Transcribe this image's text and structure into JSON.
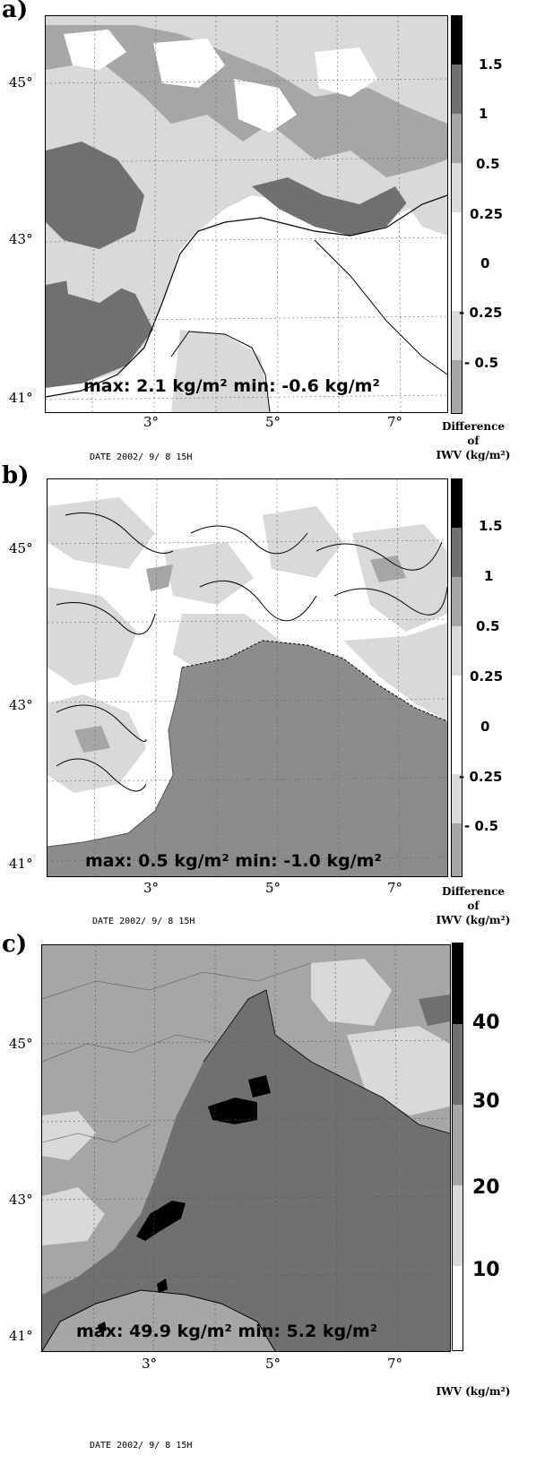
{
  "panels": [
    {
      "label": "a)",
      "lat_labels": [
        "45°",
        "43°",
        "41°"
      ],
      "lon_labels": [
        "3°",
        "5°",
        "7°"
      ],
      "stats": "max: 2.1 kg/m²   min: -0.6 kg/m²",
      "scale_ticks": [
        "1.5",
        "1",
        "0.5",
        "0.25",
        "0",
        "- 0.25",
        "- 0.5"
      ],
      "unit_lines": [
        "Difference",
        "of",
        "IWV (kg/m²)"
      ],
      "date": "DATE 2002/ 9/ 8  15H"
    },
    {
      "label": "b)",
      "lat_labels": [
        "45°",
        "43°",
        "41°"
      ],
      "lon_labels": [
        "3°",
        "5°",
        "7°"
      ],
      "stats": "max: 0.5 kg/m²   min: -1.0 kg/m²",
      "scale_ticks": [
        "1.5",
        "1",
        "0.5",
        "0.25",
        "0",
        "- 0.25",
        "- 0.5"
      ],
      "unit_lines": [
        "Difference",
        "of",
        "IWV (kg/m²)"
      ],
      "date": "DATE 2002/ 9/ 8  15H"
    },
    {
      "label": "c)",
      "lat_labels": [
        "45°",
        "43°",
        "41°"
      ],
      "lon_labels": [
        "3°",
        "5°",
        "7°"
      ],
      "stats": "max: 49.9 kg/m²   min: 5.2 kg/m²",
      "scale_ticks": [
        "40",
        "30",
        "20",
        "10"
      ],
      "unit_lines": [
        "IWV (kg/m²)"
      ],
      "date": "DATE 2002/ 9/ 8  15H"
    }
  ],
  "colors": {
    "white": "#ffffff",
    "light": "#d9d9d9",
    "mid": "#a6a6a6",
    "dark": "#707070",
    "black": "#000000"
  }
}
